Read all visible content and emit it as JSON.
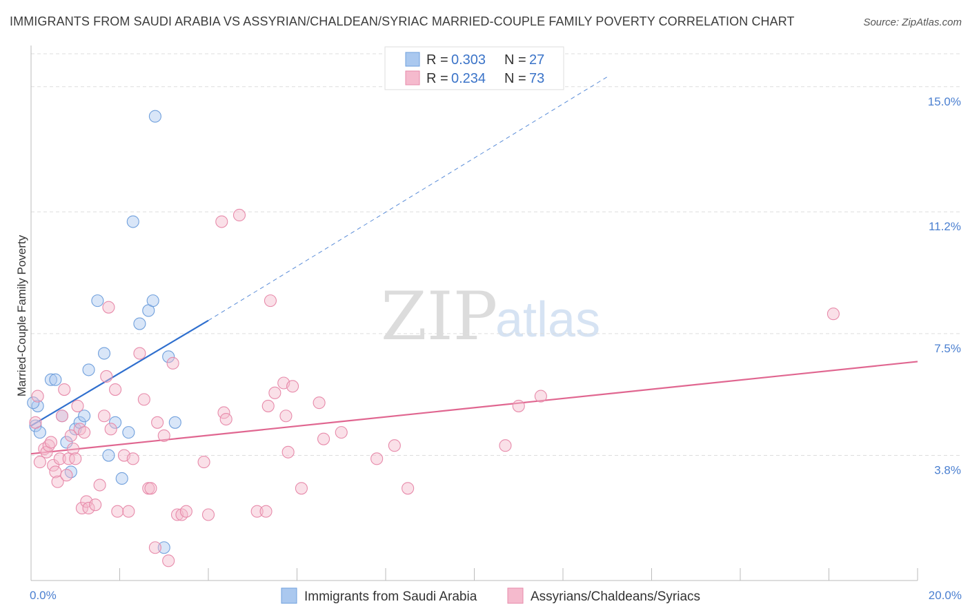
{
  "title": "IMMIGRANTS FROM SAUDI ARABIA VS ASSYRIAN/CHALDEAN/SYRIAC MARRIED-COUPLE FAMILY POVERTY CORRELATION CHART",
  "source": "Source: ZipAtlas.com",
  "watermark": {
    "zip": "ZIP",
    "atlas": "atlas"
  },
  "colors": {
    "blue_fill": "#aac8ef",
    "blue_stroke": "#6f9fdc",
    "blue_line": "#2f6fce",
    "pink_fill": "#f5bacd",
    "pink_stroke": "#e78aaa",
    "pink_line": "#e06690",
    "tick_text": "#4a7fd0",
    "grid": "#dddddd"
  },
  "legend": {
    "series": [
      {
        "r_label": "R =",
        "r_value": "0.303",
        "n_label": "N =",
        "n_value": "27"
      },
      {
        "r_label": "R =",
        "r_value": "0.234",
        "n_label": "N =",
        "n_value": "73"
      }
    ]
  },
  "chart_data": {
    "type": "scatter",
    "title": "IMMIGRANTS FROM SAUDI ARABIA VS ASSYRIAN/CHALDEAN/SYRIAC MARRIED-COUPLE FAMILY POVERTY CORRELATION CHART",
    "xlabel": "",
    "ylabel": "Married-Couple Family Poverty",
    "xlim": [
      0,
      20
    ],
    "ylim": [
      0,
      16.0
    ],
    "x_tick_labels": [
      {
        "value": 0,
        "label": "0.0%"
      },
      {
        "value": 20,
        "label": "20.0%"
      }
    ],
    "x_minor_ticks": [
      0,
      2,
      4,
      6,
      8,
      10,
      12,
      14,
      16,
      18,
      20
    ],
    "y_ticks": [
      {
        "value": 3.8,
        "label": "3.8%"
      },
      {
        "value": 7.5,
        "label": "7.5%"
      },
      {
        "value": 11.2,
        "label": "11.2%"
      },
      {
        "value": 15.0,
        "label": "15.0%"
      }
    ],
    "grid": true,
    "legend_position": "top-center",
    "series": [
      {
        "name": "Immigrants from Saudi Arabia",
        "color": "blue",
        "r": 0.303,
        "n": 27,
        "trend": {
          "x0": 0,
          "y0": 4.7,
          "x1": 4.0,
          "y1": 7.9,
          "dash_to_x": 13.0,
          "dash_to_y": 15.3
        },
        "points": [
          {
            "x": 0.1,
            "y": 4.7
          },
          {
            "x": 0.15,
            "y": 5.3
          },
          {
            "x": 0.2,
            "y": 4.5
          },
          {
            "x": 0.45,
            "y": 6.1
          },
          {
            "x": 0.55,
            "y": 6.1
          },
          {
            "x": 0.7,
            "y": 5.0
          },
          {
            "x": 0.8,
            "y": 4.2
          },
          {
            "x": 0.9,
            "y": 3.3
          },
          {
            "x": 1.0,
            "y": 4.6
          },
          {
            "x": 1.1,
            "y": 4.8
          },
          {
            "x": 1.2,
            "y": 5.0
          },
          {
            "x": 1.3,
            "y": 6.4
          },
          {
            "x": 1.5,
            "y": 8.5
          },
          {
            "x": 1.65,
            "y": 6.9
          },
          {
            "x": 1.75,
            "y": 3.8
          },
          {
            "x": 1.9,
            "y": 4.8
          },
          {
            "x": 2.05,
            "y": 3.1
          },
          {
            "x": 2.2,
            "y": 4.5
          },
          {
            "x": 2.3,
            "y": 10.9
          },
          {
            "x": 2.45,
            "y": 7.8
          },
          {
            "x": 2.65,
            "y": 8.2
          },
          {
            "x": 2.75,
            "y": 8.5
          },
          {
            "x": 2.8,
            "y": 14.1
          },
          {
            "x": 3.0,
            "y": 1.0
          },
          {
            "x": 3.1,
            "y": 6.8
          },
          {
            "x": 3.25,
            "y": 4.8
          },
          {
            "x": 0.05,
            "y": 5.4
          }
        ]
      },
      {
        "name": "Assyrians/Chaldeans/Syriacs",
        "color": "pink",
        "r": 0.234,
        "n": 73,
        "trend": {
          "x0": 0,
          "y0": 3.85,
          "x1": 20,
          "y1": 6.65
        },
        "points": [
          {
            "x": 0.1,
            "y": 4.8
          },
          {
            "x": 0.15,
            "y": 5.6
          },
          {
            "x": 0.2,
            "y": 3.6
          },
          {
            "x": 0.3,
            "y": 4.0
          },
          {
            "x": 0.35,
            "y": 3.9
          },
          {
            "x": 0.4,
            "y": 4.1
          },
          {
            "x": 0.45,
            "y": 4.2
          },
          {
            "x": 0.5,
            "y": 3.5
          },
          {
            "x": 0.55,
            "y": 3.3
          },
          {
            "x": 0.6,
            "y": 3.0
          },
          {
            "x": 0.65,
            "y": 3.7
          },
          {
            "x": 0.7,
            "y": 5.0
          },
          {
            "x": 0.75,
            "y": 5.8
          },
          {
            "x": 0.8,
            "y": 3.2
          },
          {
            "x": 0.85,
            "y": 3.7
          },
          {
            "x": 0.9,
            "y": 4.4
          },
          {
            "x": 0.95,
            "y": 4.0
          },
          {
            "x": 1.0,
            "y": 3.7
          },
          {
            "x": 1.05,
            "y": 5.3
          },
          {
            "x": 1.1,
            "y": 4.6
          },
          {
            "x": 1.15,
            "y": 2.2
          },
          {
            "x": 1.2,
            "y": 4.5
          },
          {
            "x": 1.25,
            "y": 2.4
          },
          {
            "x": 1.3,
            "y": 2.2
          },
          {
            "x": 1.45,
            "y": 2.3
          },
          {
            "x": 1.55,
            "y": 2.9
          },
          {
            "x": 1.65,
            "y": 5.0
          },
          {
            "x": 1.7,
            "y": 6.2
          },
          {
            "x": 1.75,
            "y": 8.3
          },
          {
            "x": 1.8,
            "y": 4.6
          },
          {
            "x": 1.9,
            "y": 5.8
          },
          {
            "x": 1.95,
            "y": 2.1
          },
          {
            "x": 2.1,
            "y": 3.8
          },
          {
            "x": 2.2,
            "y": 2.1
          },
          {
            "x": 2.3,
            "y": 3.7
          },
          {
            "x": 2.45,
            "y": 6.9
          },
          {
            "x": 2.55,
            "y": 5.5
          },
          {
            "x": 2.65,
            "y": 2.8
          },
          {
            "x": 2.7,
            "y": 2.8
          },
          {
            "x": 2.8,
            "y": 1.0
          },
          {
            "x": 2.85,
            "y": 4.8
          },
          {
            "x": 3.0,
            "y": 4.4
          },
          {
            "x": 3.1,
            "y": 0.6
          },
          {
            "x": 3.2,
            "y": 6.6
          },
          {
            "x": 3.3,
            "y": 2.0
          },
          {
            "x": 3.4,
            "y": 2.0
          },
          {
            "x": 3.5,
            "y": 2.1
          },
          {
            "x": 3.9,
            "y": 3.6
          },
          {
            "x": 4.0,
            "y": 2.0
          },
          {
            "x": 4.3,
            "y": 10.9
          },
          {
            "x": 4.35,
            "y": 5.1
          },
          {
            "x": 4.4,
            "y": 4.9
          },
          {
            "x": 4.7,
            "y": 11.1
          },
          {
            "x": 5.1,
            "y": 2.1
          },
          {
            "x": 5.3,
            "y": 2.1
          },
          {
            "x": 5.35,
            "y": 5.3
          },
          {
            "x": 5.4,
            "y": 8.5
          },
          {
            "x": 5.5,
            "y": 5.7
          },
          {
            "x": 5.7,
            "y": 6.0
          },
          {
            "x": 5.75,
            "y": 5.0
          },
          {
            "x": 5.8,
            "y": 3.9
          },
          {
            "x": 5.9,
            "y": 5.9
          },
          {
            "x": 6.1,
            "y": 2.8
          },
          {
            "x": 6.5,
            "y": 5.4
          },
          {
            "x": 6.6,
            "y": 4.3
          },
          {
            "x": 7.0,
            "y": 4.5
          },
          {
            "x": 7.8,
            "y": 3.7
          },
          {
            "x": 8.2,
            "y": 4.1
          },
          {
            "x": 8.5,
            "y": 2.8
          },
          {
            "x": 10.7,
            "y": 4.1
          },
          {
            "x": 11.0,
            "y": 5.3
          },
          {
            "x": 11.5,
            "y": 5.6
          },
          {
            "x": 18.1,
            "y": 8.1
          }
        ]
      }
    ]
  }
}
